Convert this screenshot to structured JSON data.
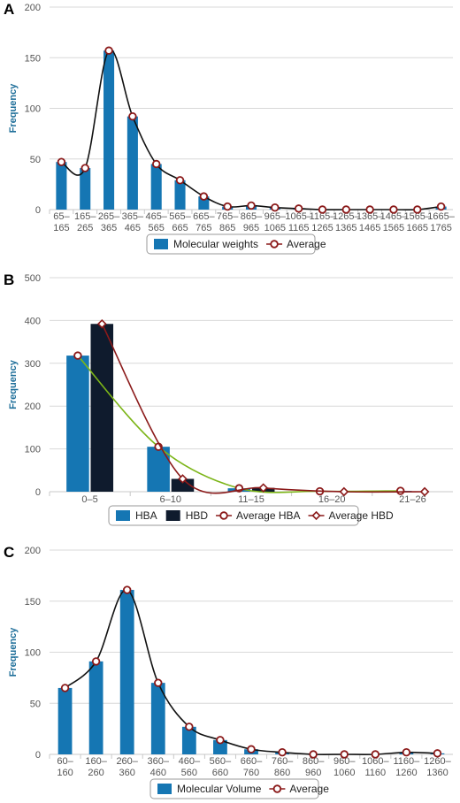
{
  "colors": {
    "bar_blue": "#1576b3",
    "bar_dark": "#0f1b2d",
    "avg_line": "#111111",
    "marker_edge": "#8b1a1a",
    "green_line": "#7cb518",
    "red_line": "#8b1a1a",
    "grid": "#d8d8d8"
  },
  "chart_data": [
    {
      "panel": "A",
      "type": "bar",
      "ylabel": "Frequency",
      "ylim": [
        0,
        200
      ],
      "yticks": [
        0,
        50,
        100,
        150,
        200
      ],
      "categories": [
        [
          "65–",
          "165"
        ],
        [
          "165–",
          "265"
        ],
        [
          "265–",
          "365"
        ],
        [
          "365–",
          "465"
        ],
        [
          "465–",
          "565"
        ],
        [
          "565–",
          "665"
        ],
        [
          "665–",
          "765"
        ],
        [
          "765–",
          "865"
        ],
        [
          "865–",
          "965"
        ],
        [
          "965–",
          "1065"
        ],
        [
          "1065–",
          "1165"
        ],
        [
          "1165–",
          "1265"
        ],
        [
          "1265–",
          "1365"
        ],
        [
          "1365–",
          "1465"
        ],
        [
          "1465–",
          "1565"
        ],
        [
          "1565–",
          "1665"
        ],
        [
          "1665–",
          "1765"
        ]
      ],
      "series": [
        {
          "name": "Molecular weights",
          "kind": "bar",
          "values": [
            47,
            41,
            157,
            92,
            45,
            29,
            13,
            3,
            4,
            2,
            1,
            0,
            0,
            0,
            0,
            0,
            3
          ]
        },
        {
          "name": "Average",
          "kind": "line",
          "values": [
            47,
            41,
            157,
            92,
            45,
            29,
            13,
            3,
            4,
            2,
            1,
            0,
            0,
            0,
            0,
            0,
            3
          ]
        }
      ],
      "legend": "bottom"
    },
    {
      "panel": "B",
      "type": "bar",
      "ylabel": "Frequency",
      "ylim": [
        0,
        500
      ],
      "yticks": [
        0,
        100,
        200,
        300,
        400,
        500
      ],
      "categories": [
        [
          "0–5"
        ],
        [
          "6–10"
        ],
        [
          "11–15"
        ],
        [
          "16–20"
        ],
        [
          "21–26"
        ]
      ],
      "series": [
        {
          "name": "HBA",
          "kind": "bar",
          "values": [
            318,
            105,
            8,
            1,
            2
          ]
        },
        {
          "name": "HBD",
          "kind": "bar",
          "values": [
            392,
            30,
            9,
            0,
            0
          ]
        },
        {
          "name": "Average HBA",
          "kind": "line",
          "values": [
            318,
            105,
            8,
            1,
            2
          ]
        },
        {
          "name": "Average HBD",
          "kind": "line",
          "values": [
            392,
            30,
            9,
            0,
            0
          ]
        }
      ],
      "legend": "bottom"
    },
    {
      "panel": "C",
      "type": "bar",
      "ylabel": "Frequency",
      "ylim": [
        0,
        200
      ],
      "yticks": [
        0,
        50,
        100,
        150,
        200
      ],
      "categories": [
        [
          "60–",
          "160"
        ],
        [
          "160–",
          "260"
        ],
        [
          "260–",
          "360"
        ],
        [
          "360–",
          "460"
        ],
        [
          "460–",
          "560"
        ],
        [
          "560–",
          "660"
        ],
        [
          "660–",
          "760"
        ],
        [
          "760–",
          "860"
        ],
        [
          "860–",
          "960"
        ],
        [
          "960–",
          "1060"
        ],
        [
          "1060–",
          "1160"
        ],
        [
          "1160–",
          "1260"
        ],
        [
          "1260–",
          "1360"
        ]
      ],
      "series": [
        {
          "name": "Molecular Volume",
          "kind": "bar",
          "values": [
            65,
            91,
            161,
            70,
            27,
            14,
            5,
            2,
            0,
            0,
            0,
            2,
            1
          ]
        },
        {
          "name": "Average",
          "kind": "line",
          "values": [
            65,
            91,
            161,
            70,
            27,
            14,
            5,
            2,
            0,
            0,
            0,
            2,
            1
          ]
        }
      ],
      "legend": "bottom"
    }
  ]
}
